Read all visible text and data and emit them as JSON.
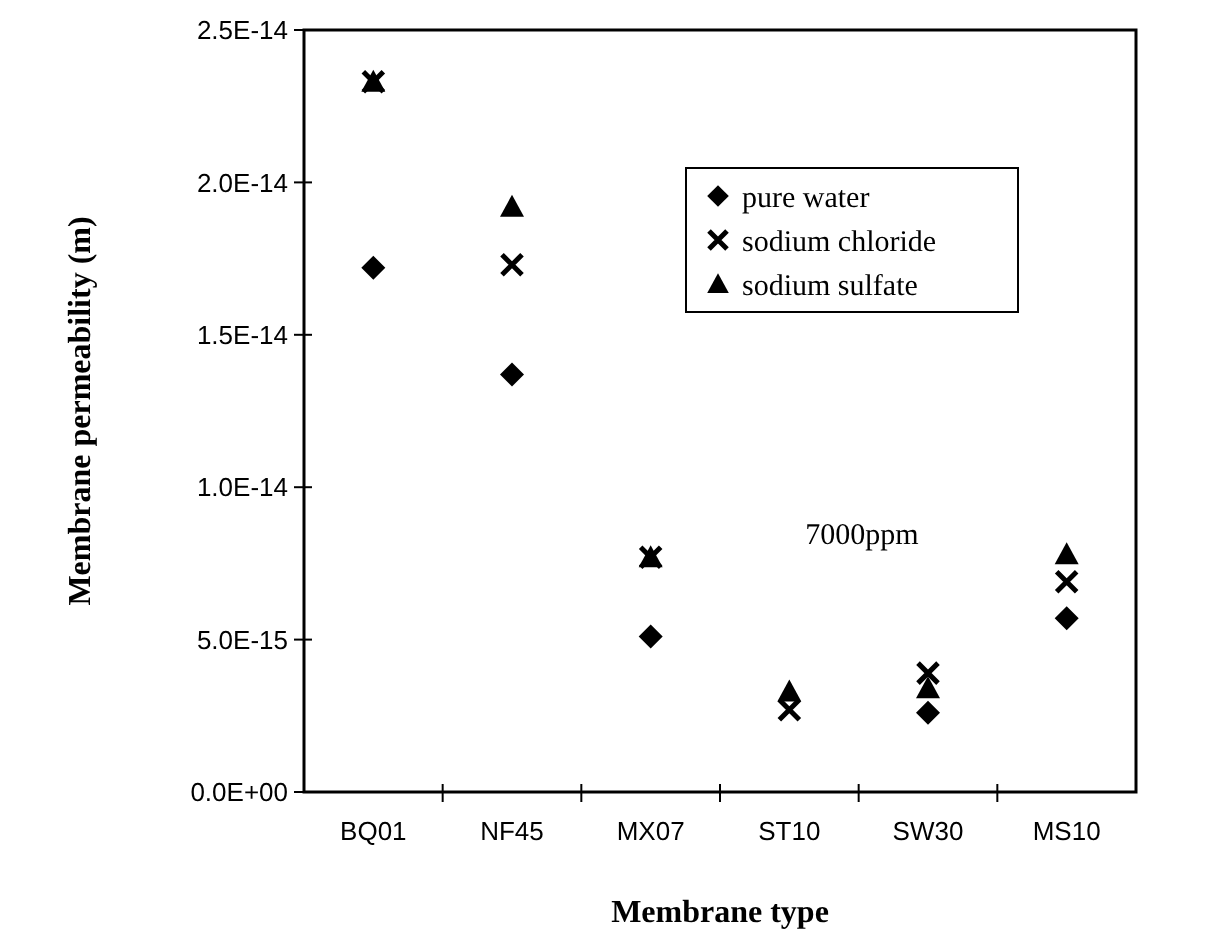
{
  "chart_data": {
    "type": "scatter",
    "xlabel": "Membrane type",
    "ylabel": "Membrane permeability (m)",
    "annotations": [
      "7000ppm"
    ],
    "categories": [
      "BQ01",
      "NF45",
      "MX07",
      "ST10",
      "SW30",
      "MS10"
    ],
    "ylim": [
      0,
      2.5e-14
    ],
    "yticks": [
      {
        "value": 0,
        "label": "0.0E+00"
      },
      {
        "value": 5e-15,
        "label": "5.0E-15"
      },
      {
        "value": 1e-14,
        "label": "1.0E-14"
      },
      {
        "value": 1.5e-14,
        "label": "1.5E-14"
      },
      {
        "value": 2e-14,
        "label": "2.0E-14"
      },
      {
        "value": 2.5e-14,
        "label": "2.5E-14"
      }
    ],
    "legend": "top right",
    "grid": false,
    "series": [
      {
        "name": "pure water",
        "color": "#000000",
        "marker": "diamond",
        "values": [
          1.72e-14,
          1.37e-14,
          5.1e-15,
          null,
          2.6e-15,
          5.7e-15
        ]
      },
      {
        "name": "sodium chloride",
        "color": "#000000",
        "marker": "cross",
        "values": [
          2.33e-14,
          1.73e-14,
          7.7e-15,
          2.7e-15,
          3.9e-15,
          6.9e-15
        ]
      },
      {
        "name": "sodium sulfate",
        "color": "#000000",
        "marker": "triangle",
        "values": [
          2.33e-14,
          1.92e-14,
          7.7e-15,
          3.3e-15,
          3.4e-15,
          7.8e-15
        ]
      }
    ]
  }
}
